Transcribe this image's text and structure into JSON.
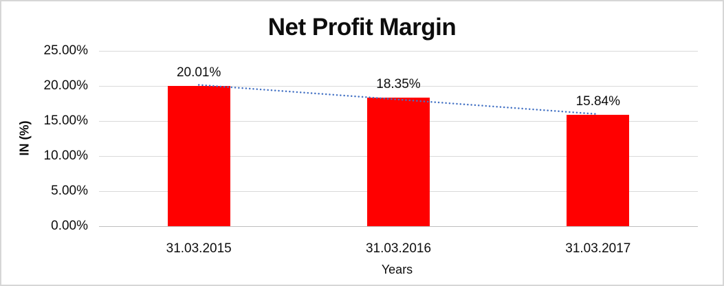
{
  "window": {
    "background": "#ffffff",
    "border_color": "#d6d6d6"
  },
  "chart_data": {
    "type": "bar",
    "title": "Net Profit Margin",
    "xlabel": "Years",
    "ylabel": "IN (%)",
    "categories": [
      "31.03.2015",
      "31.03.2016",
      "31.03.2017"
    ],
    "values": [
      20.01,
      18.35,
      15.84
    ],
    "data_labels": [
      "20.01%",
      "18.35%",
      "15.84%"
    ],
    "y_ticks": [
      "0.00%",
      "5.00%",
      "10.00%",
      "15.00%",
      "20.00%",
      "25.00%"
    ],
    "ylim": [
      0,
      25
    ],
    "grid": true,
    "legend_position": "none",
    "bar_color": "#ff0000",
    "gridline_color": "#d9d9d9",
    "axis_line_color": "#bfbfbf",
    "text_color": "#0d0d0d",
    "trendline": {
      "type": "linear",
      "style": "dotted",
      "color": "#4472c4"
    }
  }
}
